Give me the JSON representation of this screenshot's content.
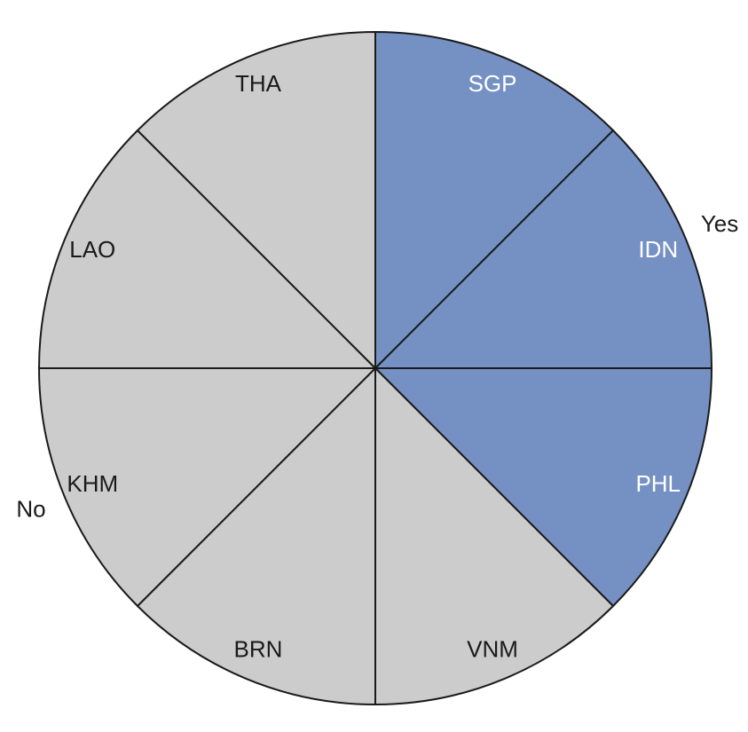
{
  "chart_data": {
    "type": "pie",
    "groups": [
      {
        "name": "Yes",
        "color": "#7591c4",
        "categories": [
          "SGP",
          "IDN",
          "PHL"
        ],
        "values": [
          12.5,
          12.5,
          12.5
        ]
      },
      {
        "name": "No",
        "color": "#cccccc",
        "categories": [
          "VNM",
          "BRN",
          "KHM",
          "LAO",
          "THA"
        ],
        "values": [
          12.5,
          12.5,
          12.5,
          12.5,
          12.5
        ]
      }
    ]
  }
}
